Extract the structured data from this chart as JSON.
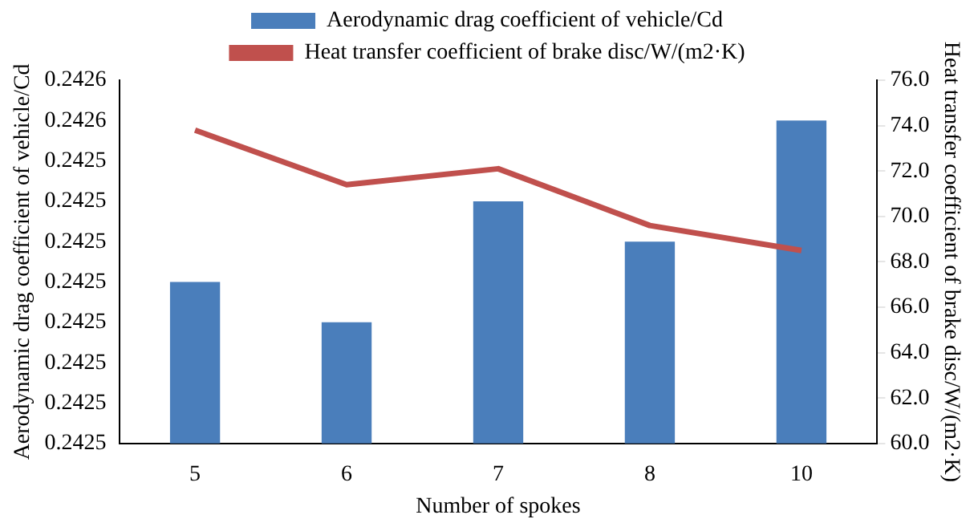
{
  "chart_data": {
    "type": "bar",
    "xlabel": "Number of spokes",
    "ylabel": "Aerodynamic drag coefficient of vehicle/Cd",
    "y2label": "Heat transfer coefficient of brake disc/W/(m2·K)",
    "categories": [
      "5",
      "6",
      "7",
      "8",
      "10"
    ],
    "series": [
      {
        "name": "Aerodynamic drag coefficient of vehicle/Cd",
        "color": "#4a7ebb",
        "values": [
          0.24251,
          0.2425,
          0.24253,
          0.24252,
          0.24255
        ]
      },
      {
        "name": "Heat transfer coefficient of brake disc/W/(m2·K)",
        "type": "line",
        "axis": "y2",
        "color": "#c0504d",
        "values": [
          73.8,
          71.4,
          72.1,
          69.6,
          68.5
        ]
      }
    ],
    "ylim": [
      0.24247,
      0.24256
    ],
    "yticks": [
      {
        "value": 0.24247,
        "label": "0.2425"
      },
      {
        "value": 0.24248,
        "label": "0.2425"
      },
      {
        "value": 0.24249,
        "label": "0.2425"
      },
      {
        "value": 0.2425,
        "label": "0.2425"
      },
      {
        "value": 0.24251,
        "label": "0.2425"
      },
      {
        "value": 0.24252,
        "label": "0.2425"
      },
      {
        "value": 0.24253,
        "label": "0.2425"
      },
      {
        "value": 0.24254,
        "label": "0.2425"
      },
      {
        "value": 0.24255,
        "label": "0.2426"
      },
      {
        "value": 0.24256,
        "label": "0.2426"
      }
    ],
    "y2lim": [
      60,
      76
    ],
    "y2ticks": [
      {
        "value": 60,
        "label": "60.0"
      },
      {
        "value": 62,
        "label": "62.0"
      },
      {
        "value": 64,
        "label": "64.0"
      },
      {
        "value": 66,
        "label": "66.0"
      },
      {
        "value": 68,
        "label": "68.0"
      },
      {
        "value": 70,
        "label": "70.0"
      },
      {
        "value": 72,
        "label": "72.0"
      },
      {
        "value": 74,
        "label": "74.0"
      },
      {
        "value": 76,
        "label": "76.0"
      }
    ],
    "grid": false,
    "legend": "top",
    "marker": "none"
  }
}
